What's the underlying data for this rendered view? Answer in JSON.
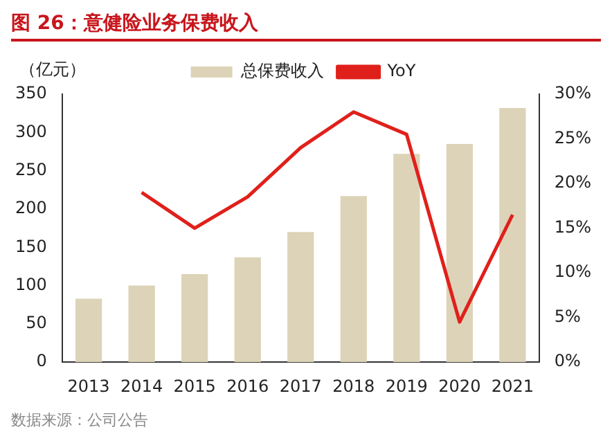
{
  "chart_data": {
    "type": "bar",
    "title": "图 26：意健险业务保费收入",
    "ylabel": "（亿元）",
    "categories": [
      "2013",
      "2014",
      "2015",
      "2016",
      "2017",
      "2018",
      "2019",
      "2020",
      "2021"
    ],
    "series": [
      {
        "name": "总保费收入",
        "color": "#ddd3b8",
        "values": [
          83,
          100,
          115,
          137,
          170,
          217,
          272,
          285,
          332
        ]
      },
      {
        "name": "YoY",
        "type": "line",
        "axis": "y2",
        "color": "#e0201b",
        "values": [
          null,
          19,
          15,
          18.5,
          24,
          28,
          25.5,
          4.5,
          16.5
        ]
      }
    ],
    "ylim": [
      0,
      350
    ],
    "yticks": [
      0,
      50,
      100,
      150,
      200,
      250,
      300,
      350
    ],
    "y2lim": [
      0,
      30
    ],
    "y2ticks": [
      {
        "value": 0,
        "label": "0%"
      },
      {
        "value": 5,
        "label": "5%"
      },
      {
        "value": 10,
        "label": "10%"
      },
      {
        "value": 15,
        "label": "15%"
      },
      {
        "value": 20,
        "label": "20%"
      },
      {
        "value": 25,
        "label": "25%"
      },
      {
        "value": 30,
        "label": "30%"
      }
    ],
    "grid": false,
    "legend": "top",
    "marker": "none",
    "annotations": [
      "数据来源：公司公告"
    ]
  }
}
